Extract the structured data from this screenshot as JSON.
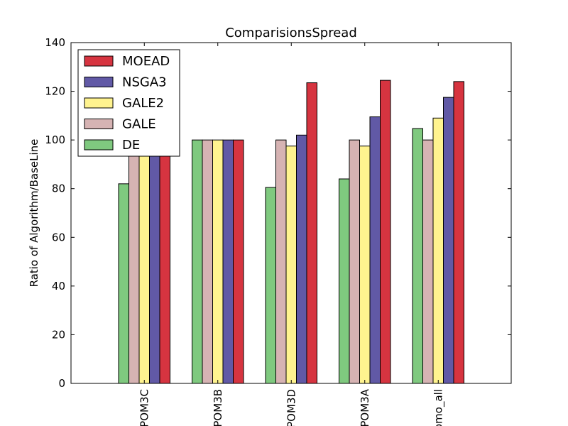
{
  "chart_data": {
    "type": "bar",
    "title": "ComparisionsSpread",
    "xlabel": "",
    "ylabel": "Ratio of Algorithm/BaseLine",
    "ylim": [
      0,
      140
    ],
    "yticks": [
      0,
      20,
      40,
      60,
      80,
      100,
      120,
      140
    ],
    "categories": [
      "POM3C",
      "POM3B",
      "POM3D",
      "POM3A",
      "xomo_all"
    ],
    "series": [
      {
        "name": "DE",
        "color": "#7fc97f",
        "values": [
          82,
          100,
          80.5,
          84,
          104.7
        ]
      },
      {
        "name": "GALE",
        "color": "#d6b3b3",
        "values": [
          100,
          100,
          100,
          100,
          100
        ]
      },
      {
        "name": "GALE2",
        "color": "#fff38f",
        "values": [
          100,
          100,
          97.5,
          97.5,
          109
        ]
      },
      {
        "name": "NSGA3",
        "color": "#6159a6",
        "values": [
          100,
          100,
          102,
          109.5,
          117.5
        ]
      },
      {
        "name": "MOEAD",
        "color": "#d63440",
        "values": [
          100,
          100,
          123.5,
          124.5,
          124
        ]
      }
    ],
    "legend_order": [
      "MOEAD",
      "NSGA3",
      "GALE2",
      "GALE",
      "DE"
    ],
    "legend_placement": "top-left",
    "grid": false
  }
}
